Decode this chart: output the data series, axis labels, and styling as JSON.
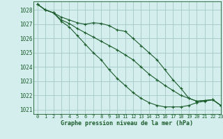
{
  "title": "Graphe pression niveau de la mer (hPa)",
  "bg_color": "#d4eeee",
  "grid_color": "#aacccc",
  "line_color": "#1a5c2a",
  "xlim": [
    -0.5,
    23
  ],
  "ylim": [
    1020.7,
    1028.6
  ],
  "yticks": [
    1021,
    1022,
    1023,
    1024,
    1025,
    1026,
    1027,
    1028
  ],
  "xticks": [
    0,
    1,
    2,
    3,
    4,
    5,
    6,
    7,
    8,
    9,
    10,
    11,
    12,
    13,
    14,
    15,
    16,
    17,
    18,
    19,
    20,
    21,
    22,
    23
  ],
  "series": [
    [
      1028.4,
      1028.0,
      1027.8,
      1027.5,
      1027.3,
      1027.1,
      1027.0,
      1027.1,
      1027.05,
      1026.9,
      1026.6,
      1026.5,
      1026.0,
      1025.5,
      1025.0,
      1024.5,
      1023.8,
      1023.1,
      1022.5,
      1021.8,
      1021.6,
      1021.65,
      1021.7,
      1021.3
    ],
    [
      1028.4,
      1028.0,
      1027.8,
      1027.2,
      1026.8,
      1026.2,
      1025.6,
      1025.0,
      1024.5,
      1023.8,
      1023.2,
      1022.7,
      1022.2,
      1021.8,
      1021.5,
      1021.3,
      1021.2,
      1021.2,
      1021.2,
      1021.3,
      1021.5,
      1021.6,
      1021.7,
      1021.3
    ],
    [
      1028.4,
      1028.0,
      1027.8,
      1027.3,
      1027.05,
      1026.7,
      1026.4,
      1026.1,
      1025.8,
      1025.5,
      1025.2,
      1024.85,
      1024.5,
      1024.0,
      1023.5,
      1023.1,
      1022.7,
      1022.35,
      1022.0,
      1021.8,
      1021.6,
      1021.65,
      1021.7,
      1021.3
    ]
  ]
}
